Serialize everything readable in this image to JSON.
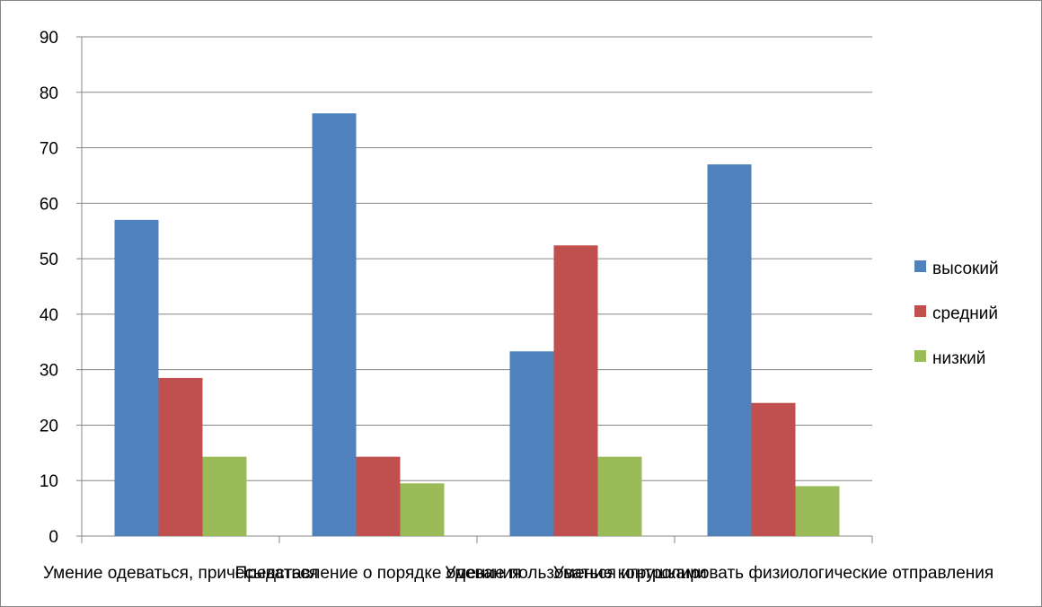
{
  "chart_data": {
    "type": "bar",
    "categories": [
      "Умение одеваться, причесываться",
      "Представление о порядке одевания",
      "Умение пользоваться игрушками",
      "Умение контролировать физиологические отправления"
    ],
    "series": [
      {
        "name": "высокий",
        "color": "#4F81BD",
        "values": [
          57,
          76.2,
          33.3,
          67
        ]
      },
      {
        "name": "средний",
        "color": "#C0504D",
        "values": [
          28.5,
          14.3,
          52.4,
          24
        ]
      },
      {
        "name": "низкий",
        "color": "#9BBB59",
        "values": [
          14.3,
          9.5,
          14.3,
          9
        ]
      }
    ],
    "ylim": [
      0,
      90
    ],
    "yticks": [
      0,
      10,
      20,
      30,
      40,
      50,
      60,
      70,
      80,
      90
    ],
    "title": "",
    "xlabel": "",
    "ylabel": "",
    "grid": true,
    "legend_position": "right"
  }
}
